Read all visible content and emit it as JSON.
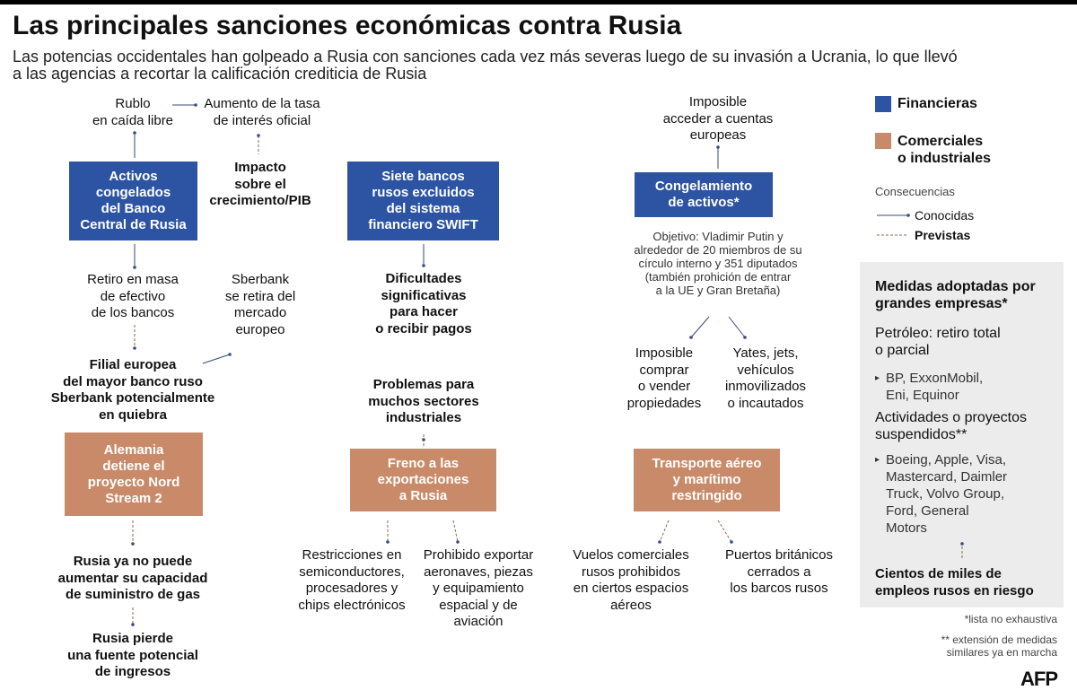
{
  "header": {
    "title": "Las principales sanciones económicas contra Rusia",
    "subtitle": "Las potencias occidentales han golpeado a Rusia con sanciones cada vez más severas luego de su invasión a Ucrania, lo que llevó\na las agencias a recortar la calificación crediticia de Rusia"
  },
  "legend": {
    "items": [
      "Financieras",
      "Comerciales\no industriales"
    ],
    "consequences": "Consecuencias",
    "known": "Conocidas",
    "expected": "Previstas"
  },
  "nodes": [
    "Rublo\nen caída libre",
    "Aumento de la tasa\nde interés oficial",
    "Activos\ncongelados\ndel Banco\nCentral de Rusia",
    "Impacto\nsobre el\ncrecimiento/PIB",
    "Retiro en masa\nde efectivo\nde los bancos",
    "Sberbank\nse retira del\nmercado\neuropeo",
    "Filial europea\ndel mayor banco ruso\nSberbank potencialmente\nen quiebra",
    "Alemania\ndetiene el\nproyecto Nord\nStream 2",
    "Rusia ya no puede\naumentar su capacidad\nde suministro de gas",
    "Rusia pierde\nuna fuente potencial\nde ingresos",
    "Siete bancos\nrusos excluidos\ndel sistema\nfinanciero SWIFT",
    "Dificultades\nsignificativas\npara hacer\no recibir pagos",
    "Problemas para\nmuchos sectores\nindustriales",
    "Freno a las\nexportaciones\na Rusia",
    "Restricciones en\nsemiconductores,\nprocesadores y\nchips electrónicos",
    "Prohibido exportar\naeronaves, piezas\ny equipamiento\nespacial y de\naviación",
    "Imposible\nacceder a cuentas\neuropeas",
    "Congelamiento\nde activos*",
    "Objetivo: Vladimir Putin y\nalrededor de 20 miembros de su\ncírculo interno y 351 diputados\n(también prohición de entrar\na la UE y Gran Bretaña)",
    "Imposible\ncomprar\no vender\npropiedades",
    "Yates, jets,\nvehículos\ninmovilizados\no incautados",
    "Transporte  aéreo\ny marítimo\nrestringido",
    "Vuelos comerciales\nrusos prohibidos\nen ciertos espacios\naéreos",
    "Puertos británicos\ncerrados a\nlos barcos rusos"
  ],
  "sidebar": {
    "title": "Medidas adoptadas por\ngrandes empresas*",
    "sections": [
      {
        "heading": "Petróleo: retiro total\no parcial",
        "items": "BP, ExxonMobil,\nEni, Equinor"
      },
      {
        "heading": "Actividades o proyectos\nsuspendidos**",
        "items": "Boeing, Apple, Visa,\nMastercard, Daimler\nTruck, Volvo Group,\nFord,  General\nMotors"
      }
    ],
    "conclusion": "Cientos de miles de\nempleos rusos en riesgo"
  },
  "footnotes": [
    "*lista no exhaustiva",
    "** extensión de medidas\nsimilares ya en marcha"
  ],
  "credit": "AFP"
}
